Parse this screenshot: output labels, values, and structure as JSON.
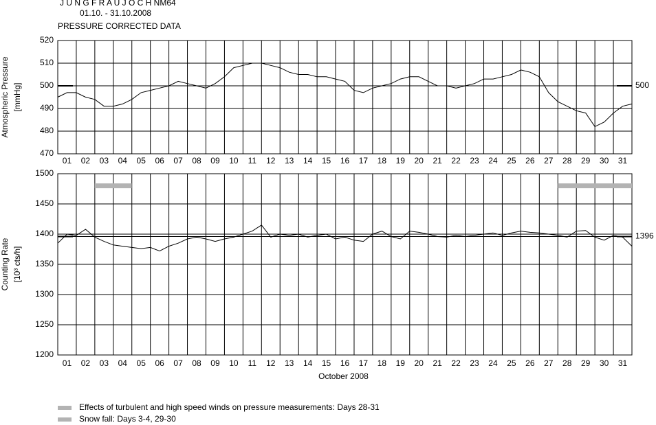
{
  "header": {
    "title": "J U N G F R A U J O C H  NM64",
    "subtitle": "01.10. - 31.10.2008",
    "note": "PRESSURE CORRECTED DATA"
  },
  "chart_data": [
    {
      "type": "line",
      "ylabel": "Atmospheric Pressure",
      "yunit": "[mmHg]",
      "categories": [
        "01",
        "02",
        "03",
        "04",
        "05",
        "06",
        "07",
        "08",
        "09",
        "10",
        "11",
        "12",
        "13",
        "14",
        "15",
        "16",
        "17",
        "18",
        "19",
        "20",
        "21",
        "22",
        "23",
        "24",
        "25",
        "26",
        "27",
        "28",
        "29",
        "30",
        "31"
      ],
      "xlim": [
        0,
        31
      ],
      "x": [
        0,
        0.5,
        1,
        1.5,
        2,
        2.5,
        3,
        3.5,
        4,
        4.5,
        5,
        5.5,
        6,
        6.5,
        7,
        7.5,
        8,
        8.5,
        9,
        9.5,
        10,
        10.5,
        11,
        11.5,
        12,
        12.5,
        13,
        13.5,
        14,
        14.5,
        15,
        15.5,
        16,
        16.5,
        17,
        17.5,
        18,
        18.5,
        19,
        19.5,
        20,
        20.5,
        21,
        21.5,
        22,
        22.5,
        23,
        23.5,
        24,
        24.5,
        25,
        25.5,
        26,
        26.5,
        27,
        27.5,
        28,
        28.5,
        29,
        29.5,
        30,
        30.5,
        31
      ],
      "series": [
        {
          "color": "#000000",
          "values": [
            495,
            497,
            497,
            495,
            494,
            491,
            491,
            492,
            494,
            497,
            498,
            499,
            500,
            502,
            501,
            500,
            499,
            501,
            504,
            508,
            509,
            510,
            510,
            509,
            508,
            506,
            505,
            505,
            504,
            504,
            503,
            502,
            498,
            497,
            499,
            500,
            501,
            503,
            504,
            504,
            502,
            500,
            500,
            499,
            500,
            501,
            503,
            503,
            504,
            505,
            507,
            506,
            504,
            497,
            493,
            491,
            489,
            488,
            482,
            484,
            488,
            491,
            492
          ]
        }
      ],
      "ylim": [
        470,
        520
      ],
      "yticks": [
        470,
        480,
        490,
        500,
        510,
        520
      ],
      "reference": 500
    },
    {
      "type": "line",
      "ylabel": "Counting Rate",
      "yunit": "[10³ cts/h]",
      "xlabel": "October 2008",
      "categories": [
        "01",
        "02",
        "03",
        "04",
        "05",
        "06",
        "07",
        "08",
        "09",
        "10",
        "11",
        "12",
        "13",
        "14",
        "15",
        "16",
        "17",
        "18",
        "19",
        "20",
        "21",
        "22",
        "23",
        "24",
        "25",
        "26",
        "27",
        "28",
        "29",
        "30",
        "31"
      ],
      "xlim": [
        0,
        31
      ],
      "x": [
        0,
        0.5,
        1,
        1.5,
        2,
        2.5,
        3,
        3.5,
        4,
        4.5,
        5,
        5.5,
        6,
        6.5,
        7,
        7.5,
        8,
        8.5,
        9,
        9.5,
        10,
        10.5,
        11,
        11.5,
        12,
        12.5,
        13,
        13.5,
        14,
        14.5,
        15,
        15.5,
        16,
        16.5,
        17,
        17.5,
        18,
        18.5,
        19,
        19.5,
        20,
        20.5,
        21,
        21.5,
        22,
        22.5,
        23,
        23.5,
        24,
        24.5,
        25,
        25.5,
        26,
        26.5,
        27,
        27.5,
        28,
        28.5,
        29,
        29.5,
        30,
        30.5,
        31
      ],
      "series": [
        {
          "color": "#000000",
          "values": [
            1385,
            1400,
            1398,
            1408,
            1395,
            1388,
            1382,
            1380,
            1378,
            1376,
            1378,
            1372,
            1380,
            1385,
            1392,
            1395,
            1392,
            1388,
            1392,
            1395,
            1400,
            1405,
            1415,
            1395,
            1400,
            1398,
            1400,
            1395,
            1398,
            1400,
            1392,
            1395,
            1390,
            1388,
            1400,
            1405,
            1396,
            1392,
            1405,
            1403,
            1400,
            1396,
            1395,
            1398,
            1396,
            1398,
            1400,
            1402,
            1398,
            1402,
            1405,
            1403,
            1402,
            1400,
            1398,
            1395,
            1405,
            1406,
            1395,
            1390,
            1398,
            1395,
            1380
          ]
        }
      ],
      "ylim": [
        1200,
        1500
      ],
      "yticks": [
        1200,
        1250,
        1300,
        1350,
        1400,
        1450,
        1500
      ],
      "reference": 1396,
      "highlights": {
        "color": "#b3b3b3",
        "level": 1480,
        "ranges": [
          [
            2,
            4
          ],
          [
            27,
            31
          ]
        ]
      }
    }
  ],
  "legend": [
    {
      "color": "#b3b3b3",
      "label": "Effects of turbulent and high speed winds on pressure measurements: Days 28-31"
    },
    {
      "color": "#b3b3b3",
      "label": "Snow fall: Days 3-4, 29-30"
    }
  ]
}
